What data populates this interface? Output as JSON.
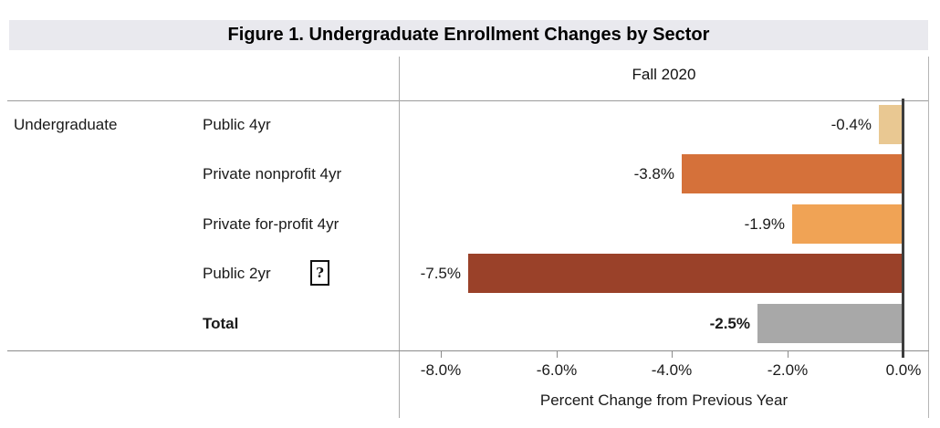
{
  "figure": {
    "title": "Figure 1. Undergraduate Enrollment Changes by Sector",
    "row_group_label": "Undergraduate",
    "column_header": "Fall 2020",
    "x_axis_label": "Percent Change from Previous Year"
  },
  "icons": {
    "missing_image": {
      "glyph": "?",
      "attached_to_row": "Public 2yr",
      "highlight_color": "#b4c3ef"
    }
  },
  "colors": {
    "title_bar_bg": "#e9e9ee",
    "zero_axis_line": "#3d3d3d",
    "grid_line": "#9b9b9b",
    "total_bar": "#a8a8a8"
  },
  "chart_data": {
    "type": "bar",
    "orientation": "horizontal",
    "title": "Figure 1. Undergraduate Enrollment Changes by Sector",
    "series_name": "Fall 2020",
    "categories": [
      "Public 4yr",
      "Private nonprofit 4yr",
      "Private for-profit 4yr",
      "Public 2yr",
      "Total"
    ],
    "values": [
      -0.4,
      -3.8,
      -1.9,
      -7.5,
      -2.5
    ],
    "data_labels": [
      "-0.4%",
      "-3.8%",
      "-1.9%",
      "-7.5%",
      "-2.5%"
    ],
    "bar_colors": [
      "#e9c892",
      "#d5713a",
      "#f0a355",
      "#9a4129",
      "#a8a8a8"
    ],
    "emphasis": [
      false,
      false,
      false,
      false,
      true
    ],
    "xlabel": "Percent Change from Previous Year",
    "xlim": [
      -8.8,
      0.45
    ],
    "x_ticks": [
      {
        "label": "-8.0%",
        "value": -8
      },
      {
        "label": "-6.0%",
        "value": -6
      },
      {
        "label": "-4.0%",
        "value": -4
      },
      {
        "label": "-2.0%",
        "value": -2
      },
      {
        "label": "0.0%",
        "value": 0
      }
    ],
    "grid": false,
    "legend": false
  }
}
